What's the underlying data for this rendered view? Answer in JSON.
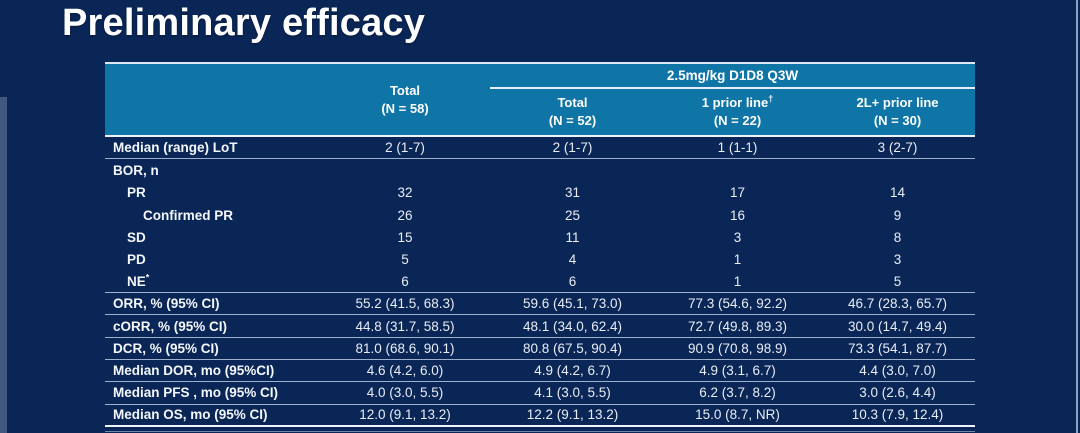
{
  "slide": {
    "title": "Preliminary efficacy"
  },
  "colors": {
    "background": "#0a2656",
    "header_fill": "#0f74a6",
    "row_line": "#9db1cd",
    "strong_line": "#eef3fa",
    "text": "#ffffff"
  },
  "table": {
    "group_header": "2.5mg/kg D1D8 Q3W",
    "columns": [
      {
        "label": "Total",
        "n": "(N = 58)"
      },
      {
        "label": "Total",
        "n": "(N = 52)"
      },
      {
        "label": "1 prior line",
        "sup": "†",
        "n": "(N = 22)"
      },
      {
        "label": "2L+ prior line",
        "n": "(N = 30)"
      }
    ],
    "rows": [
      {
        "label": "Median (range) LoT",
        "values": [
          "2 (1-7)",
          "2 (1-7)",
          "1 (1-1)",
          "3 (2-7)"
        ]
      },
      {
        "label": "BOR, n",
        "values": [
          "",
          "",
          "",
          ""
        ]
      },
      {
        "label": "PR",
        "values": [
          "32",
          "31",
          "17",
          "14"
        ]
      },
      {
        "label": "Confirmed PR",
        "values": [
          "26",
          "25",
          "16",
          "9"
        ]
      },
      {
        "label": "SD",
        "values": [
          "15",
          "11",
          "3",
          "8"
        ]
      },
      {
        "label": "PD",
        "values": [
          "5",
          "4",
          "1",
          "3"
        ]
      },
      {
        "label": "NE",
        "sup": "*",
        "values": [
          "6",
          "6",
          "1",
          "5"
        ]
      },
      {
        "label": "ORR, % (95% CI)",
        "values": [
          "55.2 (41.5, 68.3)",
          "59.6 (45.1, 73.0)",
          "77.3 (54.6, 92.2)",
          "46.7 (28.3, 65.7)"
        ]
      },
      {
        "label": "cORR, % (95% CI)",
        "values": [
          "44.8 (31.7, 58.5)",
          "48.1 (34.0, 62.4)",
          "72.7 (49.8, 89.3)",
          "30.0 (14.7, 49.4)"
        ]
      },
      {
        "label": "DCR, % (95% CI)",
        "values": [
          "81.0 (68.6, 90.1)",
          "80.8 (67.5, 90.4)",
          "90.9 (70.8, 98.9)",
          "73.3 (54.1, 87.7)"
        ]
      },
      {
        "label": "Median DOR, mo (95%CI)",
        "values": [
          "4.6 (4.2, 6.0)",
          "4.9 (4.2, 6.7)",
          "4.9 (3.1, 6.7)",
          "4.4 (3.0, 7.0)"
        ]
      },
      {
        "label": "Median PFS , mo (95% CI)",
        "values": [
          "4.0 (3.0, 5.5)",
          "4.1 (3.0, 5.5)",
          "6.2 (3.7, 8.2)",
          "3.0 (2.6, 4.4)"
        ]
      },
      {
        "label": "Median OS, mo (95% CI)",
        "values": [
          "12.0 (9.1, 13.2)",
          "12.2 (9.1, 13.2)",
          "15.0 (8.7, NR)",
          "10.3 (7.9, 12.4)"
        ]
      }
    ]
  }
}
